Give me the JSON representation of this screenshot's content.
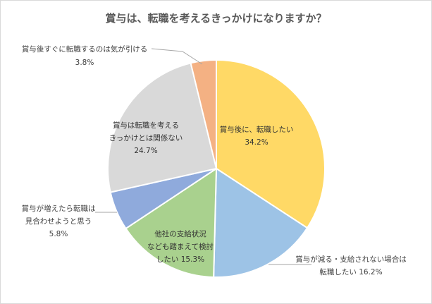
{
  "chart_data": {
    "type": "pie",
    "title": "賞与は、転職を考えるきっかけになりますか？",
    "slices": [
      {
        "label_lines": [
          "賞与後に、転職したい"
        ],
        "value": 34.2,
        "value_text": "34.2%",
        "color": "#FFD966"
      },
      {
        "label_lines": [
          "賞与が減る・支給されない場合は",
          "転職したい"
        ],
        "value": 16.2,
        "value_text": "16.2%",
        "color": "#9DC3E6"
      },
      {
        "label_lines": [
          "他社の支給状況",
          "なども踏まえて検討",
          "したい"
        ],
        "value": 15.3,
        "value_text": "15.3%",
        "color": "#A9D18E"
      },
      {
        "label_lines": [
          "賞与が増えたら転職は",
          "見合わせようと思う"
        ],
        "value": 5.8,
        "value_text": "5.8%",
        "color": "#8FAADC"
      },
      {
        "label_lines": [
          "賞与は転職を考える",
          "きっかけとは関係ない"
        ],
        "value": 24.7,
        "value_text": "24.7%",
        "color": "#D9D9D9"
      },
      {
        "label_lines": [
          "賞与後すぐに転職するのは気が引ける"
        ],
        "value": 3.8,
        "value_text": "3.8%",
        "color": "#F4B183"
      }
    ]
  }
}
